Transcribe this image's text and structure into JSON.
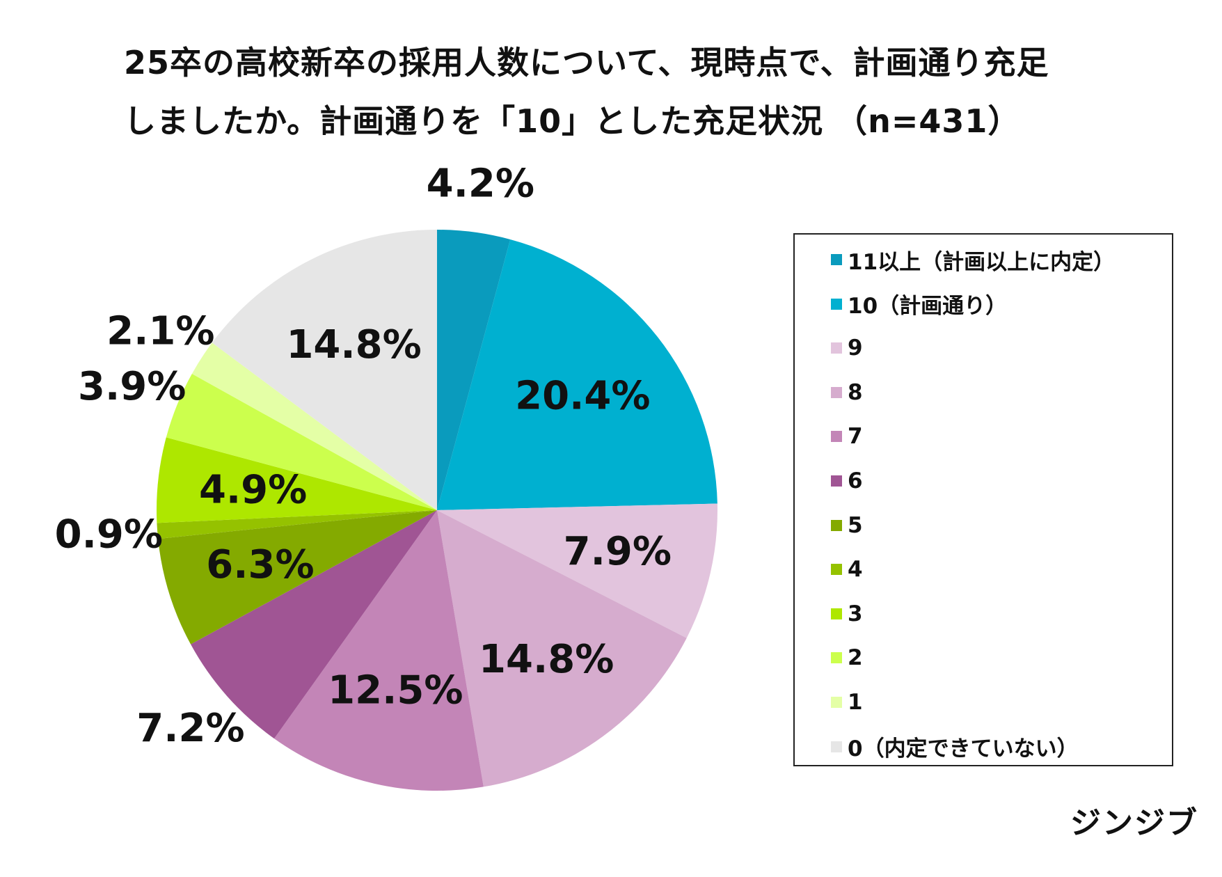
{
  "title": {
    "line1": "25卒の高校新卒の採用人数について、現時点で、計画通り充足",
    "line2": "しましたか。計画通りを「10」とした充足状況 （n=431）"
  },
  "brand": "ジンジブ",
  "chart_data": {
    "type": "pie",
    "title": "25卒の高校新卒の採用人数について、現時点で、計画通り充足しましたか。計画通りを「10」とした充足状況 （n=431）",
    "start_angle": "12 o'clock",
    "direction": "clockwise",
    "legend_position": "right",
    "categories": [
      "11以上（計画以上に内定）",
      "10（計画通り）",
      "9",
      "8",
      "7",
      "6",
      "5",
      "4",
      "3",
      "2",
      "1",
      "0（内定できていない）"
    ],
    "values": [
      4.2,
      20.4,
      7.9,
      14.8,
      12.5,
      7.2,
      6.3,
      0.9,
      4.9,
      3.9,
      2.1,
      14.8
    ],
    "value_labels": [
      "4.2%",
      "20.4%",
      "7.9%",
      "14.8%",
      "12.5%",
      "7.2%",
      "6.3%",
      "0.9%",
      "4.9%",
      "3.9%",
      "2.1%",
      "14.8%"
    ],
    "colors": [
      "#0a9bbd",
      "#00b0d0",
      "#e2c4dd",
      "#d6acce",
      "#c385b7",
      "#a05594",
      "#84aa00",
      "#95c200",
      "#aee700",
      "#ccff4d",
      "#e4ffa6",
      "#e6e6e6"
    ],
    "label_placement": [
      "outside",
      "inside",
      "inside",
      "inside",
      "inside",
      "outside",
      "inside",
      "outside",
      "inside",
      "outside",
      "outside",
      "inside"
    ]
  }
}
